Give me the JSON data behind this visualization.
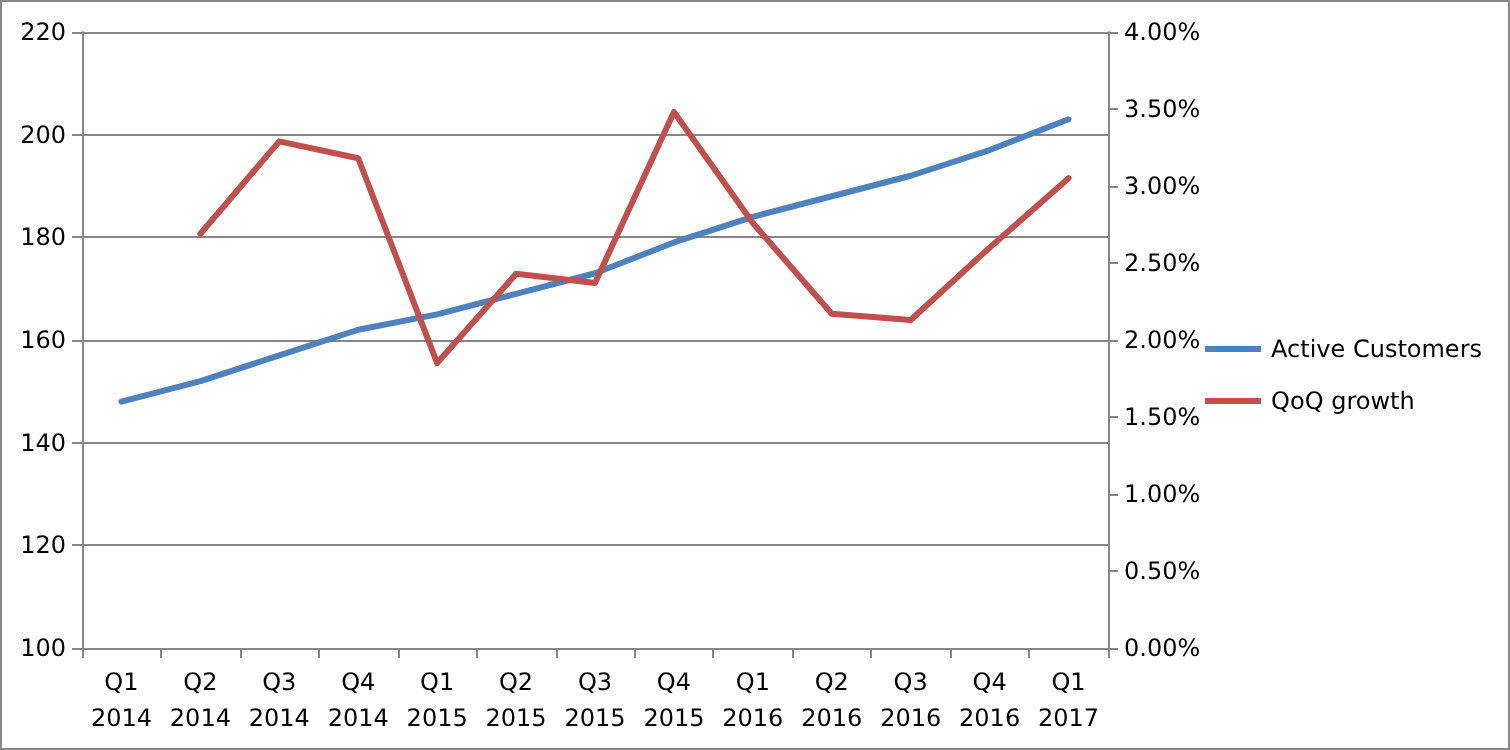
{
  "chart_data": {
    "type": "line",
    "categories": [
      "Q1\n2014",
      "Q2\n2014",
      "Q3\n2014",
      "Q4\n2014",
      "Q1\n2015",
      "Q2\n2015",
      "Q3\n2015",
      "Q4\n2015",
      "Q1\n2016",
      "Q2\n2016",
      "Q3\n2016",
      "Q4\n2016",
      "Q1\n2017"
    ],
    "series": [
      {
        "name": "Active Customers",
        "color": "#4f81bd",
        "values": [
          148,
          152,
          157,
          162,
          165,
          169,
          173,
          179,
          184,
          188,
          192,
          197,
          203
        ]
      },
      {
        "name": "QoQ growth",
        "color": "#c0504d",
        "axis": "y2",
        "values": [
          null,
          2.69,
          3.29,
          3.18,
          1.85,
          2.43,
          2.37,
          3.48,
          2.76,
          2.17,
          2.13,
          2.6,
          3.05
        ]
      }
    ],
    "ylim": [
      100,
      220
    ],
    "yticks": [
      100,
      120,
      140,
      160,
      180,
      200,
      220
    ],
    "y2lim": [
      0,
      4
    ],
    "y2ticks": [
      {
        "value": 0,
        "label": "0.00%"
      },
      {
        "value": 0.5,
        "label": "0.50%"
      },
      {
        "value": 1,
        "label": "1.00%"
      },
      {
        "value": 1.5,
        "label": "1.50%"
      },
      {
        "value": 2,
        "label": "2.00%"
      },
      {
        "value": 2.5,
        "label": "2.50%"
      },
      {
        "value": 3,
        "label": "3.00%"
      },
      {
        "value": 3.5,
        "label": "3.50%"
      },
      {
        "value": 4,
        "label": "4.00%"
      }
    ],
    "grid": "y",
    "legend": "right",
    "marker": "none",
    "line_style": "solid"
  }
}
